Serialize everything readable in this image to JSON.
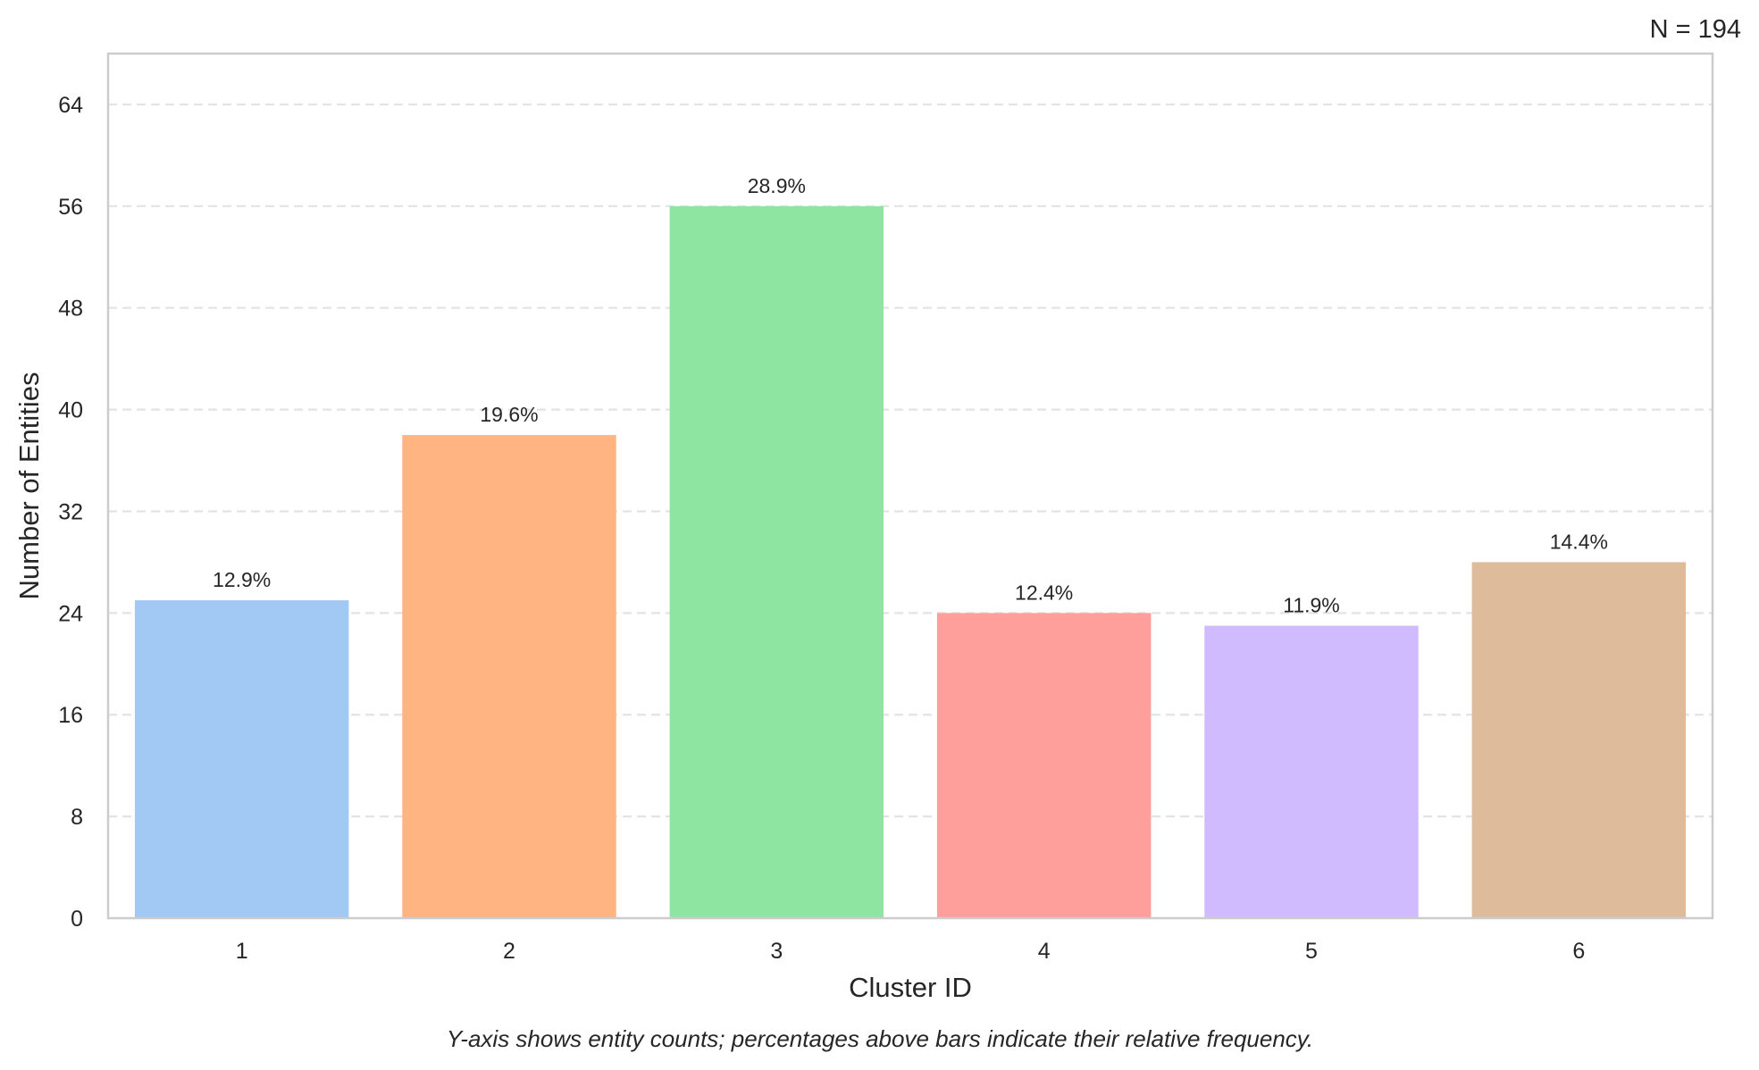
{
  "chart_data": {
    "type": "bar",
    "categories": [
      "1",
      "2",
      "3",
      "4",
      "5",
      "6"
    ],
    "values": [
      25,
      38,
      56,
      24,
      23,
      28
    ],
    "data_labels": [
      "12.9%",
      "19.6%",
      "28.9%",
      "12.4%",
      "11.9%",
      "14.4%"
    ],
    "colors": [
      "#a1c9f4",
      "#ffb482",
      "#8de5a1",
      "#ff9f9b",
      "#d0bbff",
      "#debb9b"
    ],
    "xlabel": "Cluster ID",
    "ylabel": "Number of Entities",
    "ylim": [
      0,
      68
    ],
    "yticks": [
      0,
      8,
      16,
      24,
      32,
      40,
      48,
      56,
      64
    ],
    "grid": "y-dashed",
    "annotation": "N = 194",
    "caption": "Y-axis shows entity counts; percentages above bars indicate their relative frequency."
  }
}
